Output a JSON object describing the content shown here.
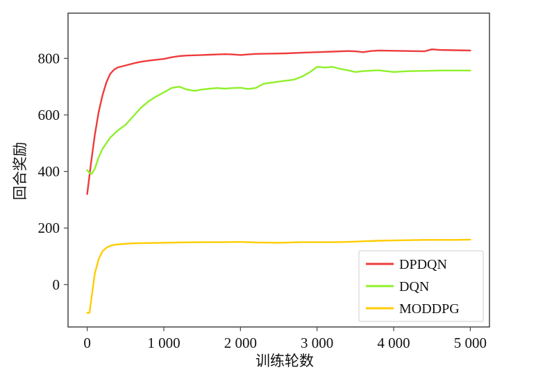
{
  "chart_data": {
    "type": "line",
    "title": "",
    "xlabel": "训练轮数",
    "ylabel": "回合奖励",
    "xlim": [
      -250,
      5250
    ],
    "ylim": [
      -150,
      960
    ],
    "xticks": [
      0,
      1000,
      2000,
      3000,
      4000,
      5000
    ],
    "xtick_labels": [
      "0",
      "1 000",
      "2 000",
      "3 000",
      "4 000",
      "5 000"
    ],
    "yticks": [
      0,
      200,
      400,
      600,
      800
    ],
    "ytick_labels": [
      "0",
      "200",
      "400",
      "600",
      "800"
    ],
    "grid": false,
    "legend_position": "bottom-right",
    "series": [
      {
        "name": "DPDQN",
        "color": "#ee3b3b",
        "x": [
          0,
          50,
          100,
          150,
          200,
          250,
          300,
          350,
          400,
          500,
          600,
          700,
          800,
          900,
          1000,
          1100,
          1200,
          1300,
          1400,
          1500,
          1600,
          1700,
          1800,
          1900,
          2000,
          2100,
          2200,
          2400,
          2600,
          2800,
          3000,
          3200,
          3400,
          3500,
          3600,
          3700,
          3800,
          4000,
          4200,
          4400,
          4500,
          4600,
          4800,
          5000
        ],
        "y": [
          320,
          430,
          530,
          610,
          670,
          715,
          745,
          760,
          768,
          775,
          782,
          788,
          792,
          795,
          798,
          804,
          808,
          810,
          811,
          812,
          813,
          814,
          815,
          814,
          812,
          814,
          816,
          817,
          818,
          820,
          822,
          824,
          826,
          825,
          822,
          826,
          828,
          827,
          826,
          825,
          832,
          830,
          829,
          828
        ]
      },
      {
        "name": "DQN",
        "color": "#8ff029",
        "x": [
          0,
          30,
          60,
          100,
          150,
          200,
          300,
          400,
          500,
          600,
          700,
          800,
          900,
          1000,
          1100,
          1200,
          1300,
          1400,
          1500,
          1600,
          1700,
          1800,
          1900,
          2000,
          2100,
          2200,
          2300,
          2500,
          2700,
          2800,
          2900,
          3000,
          3100,
          3200,
          3300,
          3400,
          3500,
          3600,
          3800,
          4000,
          4200,
          4400,
          4600,
          4800,
          5000
        ],
        "y": [
          405,
          395,
          392,
          410,
          450,
          480,
          520,
          545,
          565,
          595,
          625,
          648,
          665,
          680,
          695,
          700,
          690,
          685,
          690,
          693,
          695,
          693,
          695,
          696,
          692,
          695,
          710,
          718,
          725,
          735,
          750,
          770,
          768,
          770,
          763,
          758,
          752,
          755,
          758,
          752,
          755,
          756,
          757,
          757,
          757
        ]
      },
      {
        "name": "MODDPG",
        "color": "#ffcc00",
        "x": [
          0,
          30,
          60,
          100,
          150,
          200,
          250,
          300,
          350,
          400,
          500,
          600,
          800,
          1000,
          1200,
          1500,
          1800,
          2000,
          2200,
          2500,
          2800,
          3000,
          3200,
          3400,
          3600,
          3800,
          4000,
          4200,
          4400,
          4600,
          4800,
          5000
        ],
        "y": [
          -100,
          -100,
          -40,
          40,
          90,
          118,
          130,
          137,
          140,
          142,
          144,
          146,
          147,
          148,
          149,
          150,
          150,
          151,
          149,
          148,
          150,
          150,
          150,
          151,
          153,
          155,
          156,
          157,
          158,
          158,
          158,
          159
        ]
      }
    ]
  }
}
